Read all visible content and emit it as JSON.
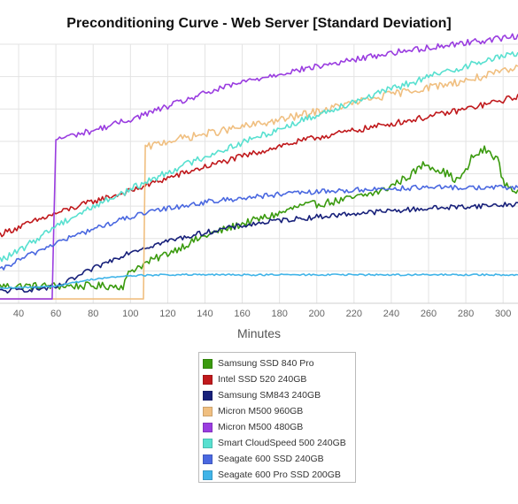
{
  "chart_data": {
    "type": "line",
    "title": "Preconditioning Curve - Web Server [Standard Deviation]",
    "xlabel": "Minutes",
    "ylabel": "",
    "xlim": [
      30,
      308
    ],
    "ylim": [
      0,
      300
    ],
    "x_ticks": [
      40,
      60,
      80,
      100,
      120,
      140,
      160,
      180,
      200,
      220,
      240,
      260,
      280,
      300
    ],
    "grid": true,
    "legend_position": "bottom-center",
    "series": [
      {
        "name": "Samsung SSD 840 Pro",
        "color": "#3a9a0e",
        "x": [
          30,
          60,
          96,
          100,
          120,
          140,
          160,
          180,
          190,
          200,
          210,
          220,
          235,
          250,
          258,
          262,
          270,
          275,
          280,
          283,
          290,
          297,
          300,
          308
        ],
        "y": [
          20,
          20,
          20,
          38,
          58,
          78,
          92,
          104,
          112,
          115,
          118,
          122,
          130,
          148,
          162,
          158,
          150,
          142,
          152,
          168,
          178,
          168,
          140,
          128
        ]
      },
      {
        "name": "Intel SSD 520 240GB",
        "color": "#c0191c",
        "x": [
          30,
          60,
          80,
          100,
          120,
          140,
          160,
          180,
          200,
          220,
          240,
          260,
          280,
          300,
          308
        ],
        "y": [
          80,
          104,
          118,
          130,
          145,
          158,
          170,
          182,
          192,
          200,
          208,
          216,
          225,
          235,
          240
        ]
      },
      {
        "name": "Samsung SM843 240GB",
        "color": "#17207a",
        "x": [
          30,
          60,
          80,
          100,
          120,
          140,
          160,
          180,
          200,
          220,
          240,
          260,
          280,
          300,
          308
        ],
        "y": [
          14,
          18,
          40,
          60,
          72,
          82,
          90,
          96,
          100,
          104,
          107,
          110,
          112,
          114,
          115
        ]
      },
      {
        "name": "Micron M500 960GB",
        "color": "#f0bf80",
        "x": [
          30,
          107,
          108,
          120,
          140,
          160,
          180,
          200,
          220,
          240,
          260,
          280,
          300,
          308
        ],
        "y": [
          5,
          5,
          180,
          188,
          196,
          204,
          212,
          222,
          232,
          242,
          250,
          258,
          268,
          272
        ]
      },
      {
        "name": "Micron M500 480GB",
        "color": "#9a3de0",
        "x": [
          30,
          58,
          60,
          80,
          100,
          120,
          140,
          160,
          180,
          200,
          220,
          240,
          260,
          280,
          300,
          308
        ],
        "y": [
          5,
          5,
          190,
          200,
          213,
          228,
          243,
          256,
          266,
          274,
          282,
          290,
          296,
          302,
          307,
          310
        ]
      },
      {
        "name": "Smart CloudSpeed 500 240GB",
        "color": "#58e0d0",
        "x": [
          30,
          40,
          60,
          80,
          100,
          120,
          140,
          160,
          180,
          200,
          220,
          240,
          260,
          280,
          300,
          308
        ],
        "y": [
          50,
          60,
          90,
          112,
          132,
          152,
          170,
          186,
          202,
          218,
          234,
          248,
          262,
          275,
          286,
          290
        ]
      },
      {
        "name": "Seagate 600 SSD 240GB",
        "color": "#4a68e0",
        "x": [
          30,
          40,
          60,
          80,
          100,
          120,
          140,
          160,
          180,
          200,
          220,
          240,
          260,
          280,
          300,
          308
        ],
        "y": [
          38,
          50,
          70,
          86,
          100,
          110,
          117,
          122,
          126,
          129,
          131,
          133,
          134,
          134,
          134,
          134
        ]
      },
      {
        "name": "Seagate 600 Pro SSD 200GB",
        "color": "#40b4e8",
        "x": [
          30,
          60,
          80,
          100,
          120,
          140,
          160,
          180,
          200,
          220,
          240,
          260,
          280,
          300,
          308
        ],
        "y": [
          17,
          20,
          28,
          32,
          33,
          33,
          33,
          33,
          33,
          33,
          33,
          33,
          33,
          33,
          33
        ]
      }
    ]
  }
}
